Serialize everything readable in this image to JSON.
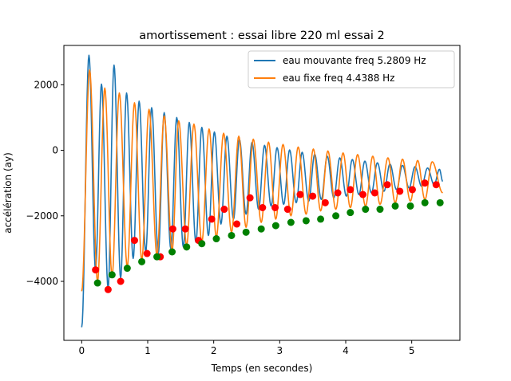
{
  "chart_data": {
    "type": "line",
    "title": "amortissement : essai libre 220 ml essai 2",
    "xlabel": "Temps (en secondes)",
    "ylabel": "accélération  (ay)",
    "xlim": [
      -0.27,
      5.73
    ],
    "ylim": [
      -5800,
      3200
    ],
    "xticks": [
      0,
      1,
      2,
      3,
      4,
      5
    ],
    "xtick_labels": [
      "0",
      "1",
      "2",
      "3",
      "4",
      "5"
    ],
    "yticks": [
      -4000,
      -2000,
      0,
      2000
    ],
    "ytick_labels": [
      "−4000",
      "−2000",
      "0",
      "2000"
    ],
    "grid": false,
    "legend_position": "top-right",
    "series": [
      {
        "name": "eau mouvante freq 5.2809 Hz",
        "color": "#1f77b4",
        "frequency_hz": 5.2809,
        "x_range": [
          0.0,
          5.47
        ],
        "peaks": [
          [
            0.11,
            2900
          ],
          [
            0.3,
            2020
          ],
          [
            0.49,
            2600
          ],
          [
            0.68,
            1750
          ],
          [
            0.87,
            1500
          ],
          [
            1.06,
            1300
          ],
          [
            1.25,
            1150
          ],
          [
            1.44,
            1000
          ],
          [
            1.63,
            850
          ],
          [
            1.82,
            700
          ],
          [
            2.01,
            560
          ],
          [
            2.2,
            430
          ],
          [
            2.39,
            330
          ],
          [
            2.58,
            240
          ],
          [
            2.77,
            150
          ],
          [
            2.96,
            80
          ],
          [
            3.15,
            10
          ],
          [
            3.34,
            -60
          ],
          [
            3.53,
            -120
          ],
          [
            3.72,
            -180
          ],
          [
            3.91,
            -230
          ],
          [
            4.1,
            -280
          ],
          [
            4.29,
            -330
          ],
          [
            4.48,
            -380
          ],
          [
            4.67,
            -420
          ],
          [
            4.86,
            -460
          ],
          [
            5.05,
            -500
          ],
          [
            5.24,
            -540
          ],
          [
            5.42,
            -580
          ]
        ],
        "troughs": [
          [
            0.0,
            -5400
          ],
          [
            0.21,
            -3650
          ],
          [
            0.4,
            -4200
          ],
          [
            0.59,
            -3900
          ],
          [
            0.78,
            -3300
          ],
          [
            0.97,
            -3100
          ],
          [
            1.16,
            -3150
          ],
          [
            1.35,
            -3000
          ],
          [
            1.54,
            -2950
          ],
          [
            1.73,
            -2800
          ],
          [
            1.92,
            -2600
          ],
          [
            2.11,
            -2250
          ],
          [
            2.3,
            -2100
          ],
          [
            2.49,
            -1950
          ],
          [
            2.68,
            -1800
          ],
          [
            2.87,
            -1700
          ],
          [
            3.06,
            -1650
          ],
          [
            3.25,
            -1600
          ],
          [
            3.44,
            -1550
          ],
          [
            3.63,
            -1500
          ],
          [
            3.82,
            -1450
          ],
          [
            4.01,
            -1400
          ],
          [
            4.2,
            -1350
          ],
          [
            4.39,
            -1300
          ],
          [
            4.58,
            -1250
          ],
          [
            4.77,
            -1200
          ],
          [
            4.96,
            -1150
          ],
          [
            5.15,
            -1100
          ],
          [
            5.34,
            -1050
          ]
        ],
        "end_value": -950
      },
      {
        "name": "eau fixe freq 4.4388 Hz",
        "color": "#ff7f0e",
        "frequency_hz": 4.4388,
        "x_range": [
          0.0,
          5.47
        ],
        "peaks": [
          [
            0.12,
            2450
          ],
          [
            0.35,
            1900
          ],
          [
            0.57,
            1750
          ],
          [
            0.8,
            1450
          ],
          [
            1.02,
            1250
          ],
          [
            1.25,
            1050
          ],
          [
            1.47,
            900
          ],
          [
            1.7,
            800
          ],
          [
            1.93,
            650
          ],
          [
            2.15,
            520
          ],
          [
            2.38,
            430
          ],
          [
            2.6,
            340
          ],
          [
            2.83,
            250
          ],
          [
            3.05,
            180
          ],
          [
            3.28,
            100
          ],
          [
            3.51,
            40
          ],
          [
            3.73,
            -20
          ],
          [
            3.96,
            -80
          ],
          [
            4.18,
            -130
          ],
          [
            4.41,
            -180
          ],
          [
            4.64,
            -230
          ],
          [
            4.86,
            -270
          ],
          [
            5.09,
            -310
          ],
          [
            5.31,
            -350
          ]
        ],
        "troughs": [
          [
            0.0,
            -4300
          ],
          [
            0.24,
            -4000
          ],
          [
            0.46,
            -3850
          ],
          [
            0.69,
            -3550
          ],
          [
            0.91,
            -3350
          ],
          [
            1.14,
            -3200
          ],
          [
            1.37,
            -3050
          ],
          [
            1.59,
            -2900
          ],
          [
            1.82,
            -2800
          ],
          [
            2.04,
            -2650
          ],
          [
            2.27,
            -2500
          ],
          [
            2.49,
            -2350
          ],
          [
            2.72,
            -2200
          ],
          [
            2.94,
            -2100
          ],
          [
            3.17,
            -2000
          ],
          [
            3.4,
            -1950
          ],
          [
            3.62,
            -1850
          ],
          [
            3.85,
            -1800
          ],
          [
            4.07,
            -1750
          ],
          [
            4.3,
            -1700
          ],
          [
            4.52,
            -1650
          ],
          [
            4.75,
            -1600
          ],
          [
            4.98,
            -1550
          ],
          [
            5.2,
            -1500
          ]
        ],
        "end_value": -1300
      }
    ],
    "markers": [
      {
        "name": "red points",
        "color": "#ff0000",
        "points": [
          [
            0.21,
            -3650
          ],
          [
            0.4,
            -4250
          ],
          [
            0.59,
            -4000
          ],
          [
            0.8,
            -2750
          ],
          [
            0.99,
            -3150
          ],
          [
            1.19,
            -3250
          ],
          [
            1.38,
            -2400
          ],
          [
            1.57,
            -2400
          ],
          [
            1.77,
            -2750
          ],
          [
            1.97,
            -2100
          ],
          [
            2.16,
            -1800
          ],
          [
            2.35,
            -2250
          ],
          [
            2.55,
            -1450
          ],
          [
            2.74,
            -1750
          ],
          [
            2.93,
            -1750
          ],
          [
            3.12,
            -1800
          ],
          [
            3.31,
            -1350
          ],
          [
            3.5,
            -1400
          ],
          [
            3.69,
            -1600
          ],
          [
            3.88,
            -1300
          ],
          [
            4.07,
            -1200
          ],
          [
            4.26,
            -1350
          ],
          [
            4.44,
            -1300
          ],
          [
            4.63,
            -1050
          ],
          [
            4.82,
            -1250
          ],
          [
            5.01,
            -1200
          ],
          [
            5.2,
            -1000
          ],
          [
            5.37,
            -1050
          ]
        ]
      },
      {
        "name": "green points",
        "color": "#008000",
        "points": [
          [
            0.24,
            -4050
          ],
          [
            0.46,
            -3800
          ],
          [
            0.69,
            -3600
          ],
          [
            0.91,
            -3400
          ],
          [
            1.14,
            -3250
          ],
          [
            1.37,
            -3100
          ],
          [
            1.59,
            -2950
          ],
          [
            1.82,
            -2850
          ],
          [
            2.04,
            -2700
          ],
          [
            2.27,
            -2600
          ],
          [
            2.49,
            -2500
          ],
          [
            2.72,
            -2400
          ],
          [
            2.94,
            -2300
          ],
          [
            3.17,
            -2200
          ],
          [
            3.4,
            -2150
          ],
          [
            3.62,
            -2100
          ],
          [
            3.85,
            -2000
          ],
          [
            4.07,
            -1900
          ],
          [
            4.3,
            -1800
          ],
          [
            4.52,
            -1800
          ],
          [
            4.75,
            -1700
          ],
          [
            4.98,
            -1700
          ],
          [
            5.2,
            -1600
          ],
          [
            5.43,
            -1600
          ]
        ]
      }
    ]
  }
}
